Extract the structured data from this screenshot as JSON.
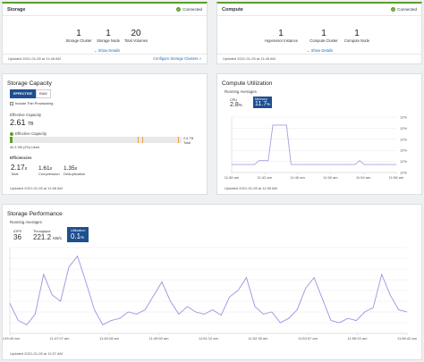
{
  "storage": {
    "title": "Storage",
    "status": "Connected",
    "stats": [
      {
        "value": "1",
        "label": "Storage Cluster"
      },
      {
        "value": "1",
        "label": "Storage Node"
      },
      {
        "value": "20",
        "label": "Total Volumes"
      }
    ],
    "show_details": "Show Details",
    "updated": "Updated 2021-01-05 at 11:48 AM",
    "configure_link": "Configure Storage Clusters »"
  },
  "compute": {
    "title": "Compute",
    "status": "Connected",
    "stats": [
      {
        "value": "1",
        "label": "Hypervisor Instance"
      },
      {
        "value": "1",
        "label": "Compute Cluster"
      },
      {
        "value": "1",
        "label": "Compute Node"
      }
    ],
    "show_details": "Show Details",
    "updated": "Updated 2021-01-05 at 11:48 AM"
  },
  "capacity": {
    "title": "Storage Capacity",
    "tabs": [
      "EFFECTIVE",
      "RAW"
    ],
    "checkbox_label": "Include Thin Provisioning",
    "effective_label": "Effective Capacity",
    "effective_value": "2.61",
    "effective_unit": "TB",
    "bar_label": "Effective Capacity",
    "bar_used_fraction": 0.016,
    "bar_total_value": "2.6 TB",
    "bar_total_label": "Total",
    "used_text": "40.3 GB (2%) Used",
    "efficiencies_title": "Efficiencies",
    "efficiencies": [
      {
        "value": "2.17",
        "label": "Total"
      },
      {
        "value": "1.61",
        "label": "Compression"
      },
      {
        "value": "1.35",
        "label": "Deduplication"
      }
    ],
    "updated": "Updated 2021-01-05 at 11:58 AM"
  },
  "compute_util": {
    "title": "Compute Utilization",
    "subtitle": "Running Averages",
    "cpu_label": "CPU",
    "cpu_value": "2.8",
    "memory_label": "Memory",
    "memory_value": "11.7",
    "percent_unit": "%",
    "updated": "Updated 2021-01-05 at 11:58 AM"
  },
  "perf": {
    "title": "Storage Performance",
    "subtitle": "Running Averages",
    "iops_label": "IOPS",
    "iops_value": "36",
    "throughput_label": "Throughput",
    "throughput_value": "221.2",
    "throughput_unit": "KB/s",
    "util_label": "Utilization",
    "util_value": "0.1",
    "util_unit": "%",
    "updated": "Updated 2021-01-05 at 11:57 AM"
  },
  "chart_data": [
    {
      "type": "line",
      "title": "Compute Utilization",
      "x_ticks": [
        "11:38 am",
        "11:42 am",
        "11:46 am",
        "11:50 am",
        "11:54 am",
        "11:58 am"
      ],
      "y_ticks": [
        "12%",
        "12%",
        "12%",
        "12%",
        "12%",
        "12%"
      ],
      "series": [
        {
          "name": "Memory",
          "values": [
            11.68,
            11.68,
            11.68,
            11.68,
            11.68,
            11.68,
            11.69,
            11.69,
            11.69,
            11.78,
            11.78,
            11.78,
            11.78,
            11.68,
            11.68,
            11.68,
            11.68,
            11.68,
            11.68,
            11.68,
            11.68,
            11.68,
            11.68,
            11.68,
            11.68,
            11.68,
            11.68,
            11.68,
            11.69,
            11.68,
            11.68,
            11.68,
            11.68,
            11.68,
            11.68,
            11.68,
            11.68
          ]
        }
      ],
      "ylim": [
        11.66,
        11.8
      ],
      "color": "#a89ee0"
    },
    {
      "type": "line",
      "title": "Storage Performance",
      "x_ticks": [
        "11:45:45 am",
        "11:47:07 am",
        "11:48:28 am",
        "11:49:50 am",
        "11:51:12 am",
        "11:52:35 am",
        "11:53:57 am",
        "11:55:20 am",
        "11:56:42 am"
      ],
      "series": [
        {
          "name": "IOPS",
          "values": [
            28,
            12,
            8,
            18,
            55,
            36,
            30,
            62,
            72,
            48,
            22,
            8,
            12,
            14,
            20,
            18,
            22,
            35,
            48,
            30,
            18,
            25,
            20,
            18,
            22,
            17,
            34,
            40,
            52,
            25,
            18,
            20,
            10,
            14,
            22,
            42,
            52,
            32,
            12,
            10,
            14,
            12,
            20,
            24,
            55,
            36,
            22,
            20
          ]
        }
      ],
      "ylim": [
        0,
        80
      ],
      "color": "#9b94e0"
    }
  ]
}
